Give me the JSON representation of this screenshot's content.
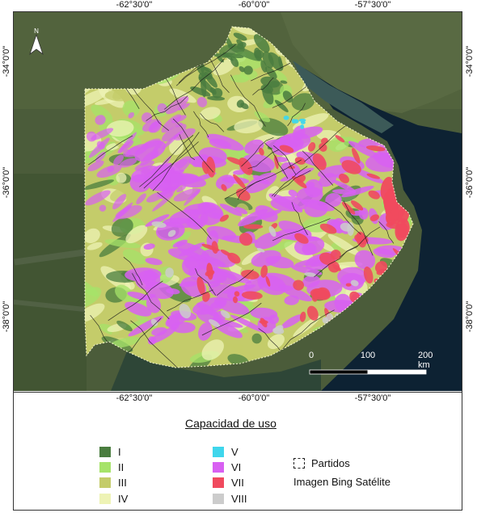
{
  "map": {
    "north_label": "N",
    "ticks_top": [
      "-62°30'0\"",
      "-60°0'0\"",
      "-57°30'0\""
    ],
    "ticks_bottom": [
      "-62°30'0\"",
      "-60°0'0\"",
      "-57°30'0\""
    ],
    "ticks_left": [
      "-34°0'0\"",
      "-36°0'0\"",
      "-38°0'0\""
    ],
    "ticks_right": [
      "-34°0'0\"",
      "-36°0'0\"",
      "-38°0'0\""
    ],
    "scale": {
      "labels": [
        "0",
        "100",
        "200 km"
      ]
    },
    "colors": {
      "ocean": "#0d2233",
      "land": "#4b5c3a",
      "river": "#3c5a58"
    }
  },
  "legend": {
    "title": "Capacidad de uso",
    "classes": [
      {
        "label": "I",
        "color": "#4a7d3f"
      },
      {
        "label": "II",
        "color": "#a6e36a"
      },
      {
        "label": "III",
        "color": "#c4cc6a"
      },
      {
        "label": "IV",
        "color": "#eef3b5"
      },
      {
        "label": "V",
        "color": "#3fd6ec"
      },
      {
        "label": "VI",
        "color": "#d860f2"
      },
      {
        "label": "VII",
        "color": "#f04a5e"
      },
      {
        "label": "VIII",
        "color": "#cccccc"
      }
    ],
    "partidos_label": "Partidos",
    "basemap_label": "Imagen Bing Satélite"
  }
}
